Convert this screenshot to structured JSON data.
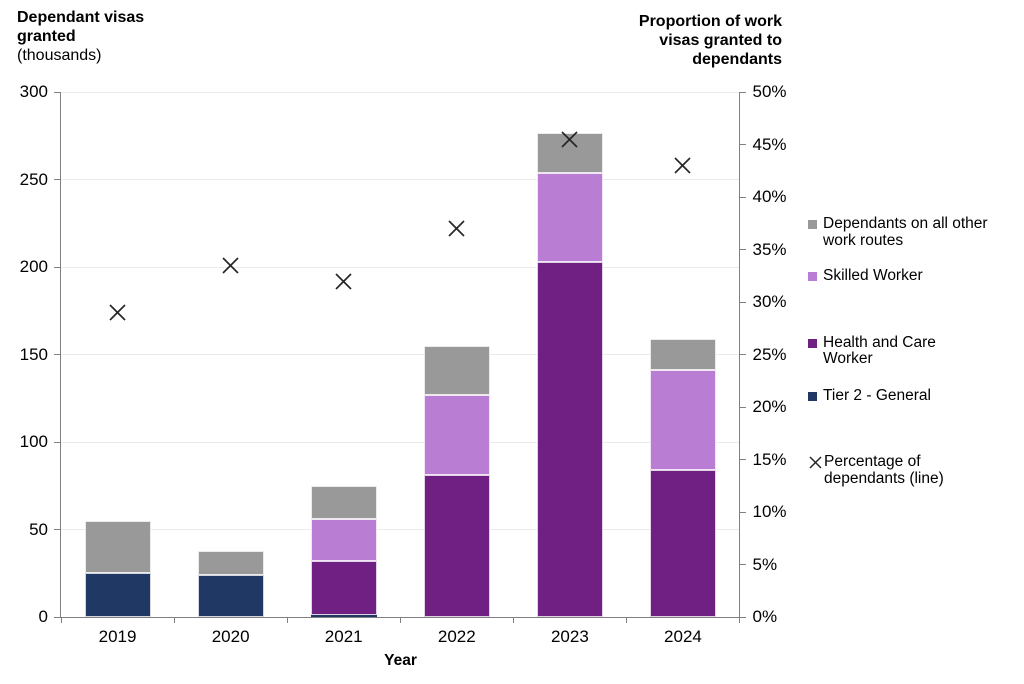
{
  "titles": {
    "left": {
      "lines": [
        "Dependant visas",
        "granted"
      ],
      "sub": "(thousands)"
    },
    "right": {
      "lines": [
        "Proportion of work",
        "visas granted to",
        "dependants"
      ]
    }
  },
  "legend": {
    "items": [
      {
        "lines": [
          "Dependants on all other",
          "work routes"
        ],
        "marker": "square",
        "color": "#999999"
      },
      {
        "lines": [
          "Skilled Worker"
        ],
        "marker": "square",
        "color": "#b97dd3"
      },
      {
        "lines": [
          "Health and Care",
          "Worker"
        ],
        "marker": "square",
        "color": "#702082"
      },
      {
        "lines": [
          "Tier 2 - General"
        ],
        "marker": "square",
        "color": "#1f3864"
      },
      {
        "lines": [
          "Percentage of",
          "dependants (line)"
        ],
        "marker": "x",
        "color": "#262626"
      }
    ]
  },
  "chart_data": {
    "type": "bar",
    "bar_mode": "stacked",
    "combo_line": true,
    "categories": [
      "2019",
      "2020",
      "2021",
      "2022",
      "2023",
      "2024"
    ],
    "series": [
      {
        "name": "Tier 2 - General",
        "type": "bar",
        "axis": "left",
        "color": "#1f3864",
        "values": [
          25,
          24,
          1,
          0,
          0,
          0
        ]
      },
      {
        "name": "Health and Care Worker",
        "type": "bar",
        "axis": "left",
        "color": "#702082",
        "values": [
          0,
          0,
          31,
          81,
          203,
          84
        ]
      },
      {
        "name": "Skilled Worker",
        "type": "bar",
        "axis": "left",
        "color": "#b97dd3",
        "values": [
          0,
          0,
          24,
          46,
          51,
          57
        ]
      },
      {
        "name": "Dependants on all other work routes",
        "type": "bar",
        "axis": "left",
        "color": "#999999",
        "values": [
          30,
          14,
          19,
          28,
          23,
          18
        ]
      },
      {
        "name": "Percentage of dependants (line)",
        "type": "scatter-x",
        "axis": "right",
        "color": "#262626",
        "values": [
          29,
          33.5,
          32,
          37,
          45.5,
          43
        ]
      }
    ],
    "bar_totals": [
      55,
      38,
      75,
      155,
      277,
      159
    ],
    "axes": {
      "left": {
        "title": "Dependant visas granted (thousands)",
        "min": 0,
        "max": 300,
        "step": 50,
        "ticks": [
          "300",
          "250",
          "200",
          "150",
          "100",
          "50",
          "0"
        ]
      },
      "right": {
        "title": "Proportion of work visas granted to dependants",
        "min": 0,
        "max": 50,
        "step": 5,
        "ticks": [
          "50%",
          "45%",
          "40%",
          "35%",
          "30%",
          "25%",
          "20%",
          "15%",
          "10%",
          "5%",
          "0%"
        ]
      },
      "x": {
        "title": "Year"
      }
    },
    "grid": true,
    "legend_position": "right"
  },
  "colors": {
    "axis_line": "#808080",
    "gridline": "#ebebeb",
    "text": "#000000",
    "marker": "#262626",
    "background": "#ffffff"
  }
}
